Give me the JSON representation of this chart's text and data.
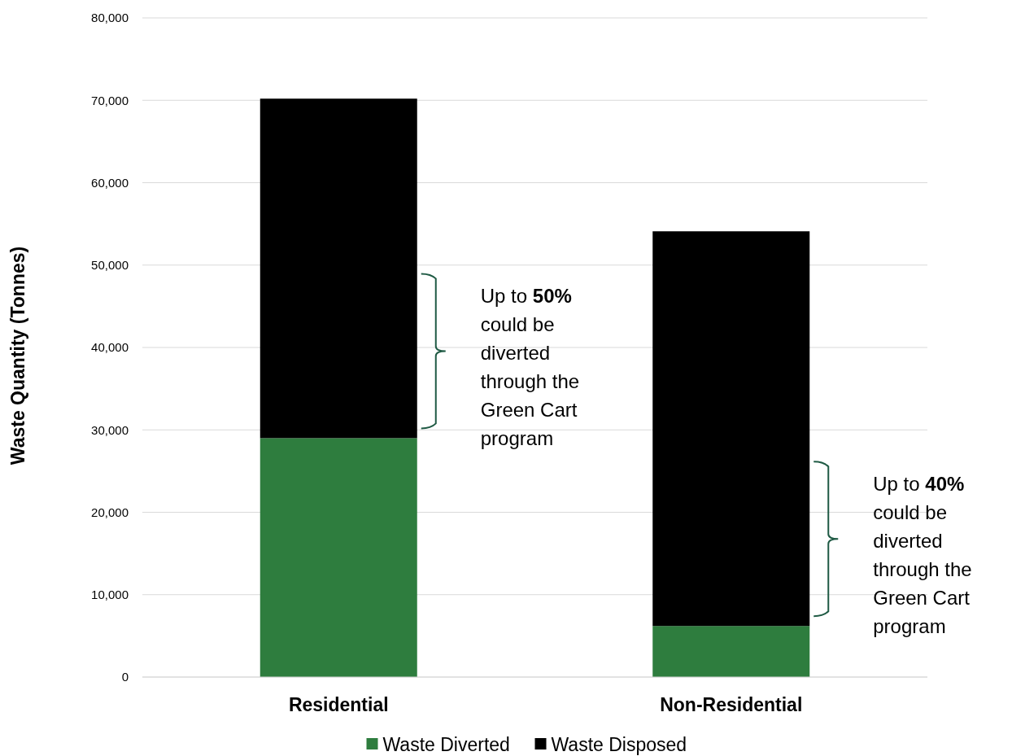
{
  "chart_data": {
    "type": "bar",
    "stacked": true,
    "categories": [
      "Residential",
      "Non-Residential"
    ],
    "series": [
      {
        "name": "Waste Diverted",
        "color": "#2e7d3e",
        "values": [
          29000,
          6200
        ]
      },
      {
        "name": "Waste Disposed",
        "color": "#000000",
        "values": [
          41200,
          47900
        ]
      }
    ],
    "ylabel": "Waste Quantity (Tonnes)",
    "ylim": [
      0,
      80000
    ],
    "yticks": [
      {
        "value": 0,
        "label": "0"
      },
      {
        "value": 10000,
        "label": "10,000"
      },
      {
        "value": 20000,
        "label": "20,000"
      },
      {
        "value": 30000,
        "label": "30,000"
      },
      {
        "value": 40000,
        "label": "40,000"
      },
      {
        "value": 50000,
        "label": "50,000"
      },
      {
        "value": 60000,
        "label": "60,000"
      },
      {
        "value": 70000,
        "label": "70,000"
      },
      {
        "value": 80000,
        "label": "80,000"
      }
    ],
    "grid": "y",
    "legend": "bottom",
    "annotations": [
      "Up to 50%\ncould be\ndiverted\nthrough the\nGreen Cart\nprogram",
      "Up to 40%\ncould be\ndiverted\nthrough the\nGreen Cart\nprogram"
    ]
  }
}
